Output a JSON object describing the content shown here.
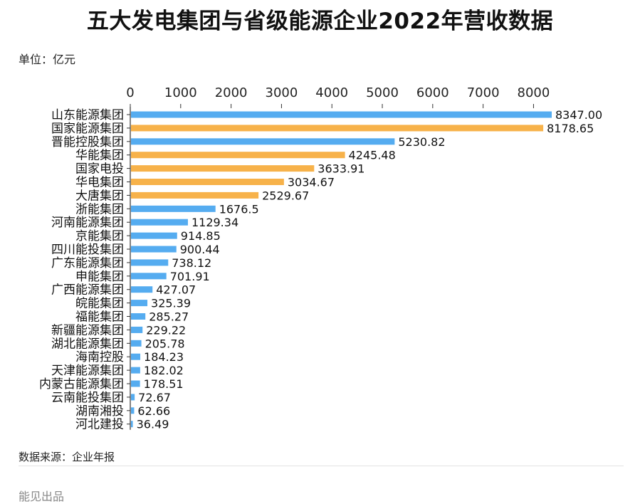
{
  "title": "五大发电集团与省级能源企业2022年营收数据",
  "unit_text": "单位：亿元",
  "source_text": "数据来源：企业年报",
  "brand_text": "能见出品",
  "colors": {
    "blue": "#55acf0",
    "orange": "#f7b24a",
    "axis": "#333333",
    "text": "#111111"
  },
  "chart_data": {
    "type": "bar",
    "orientation": "horizontal",
    "title": "五大发电集团与省级能源企业2022年营收数据",
    "unit": "亿元",
    "xlim": [
      0,
      8347
    ],
    "ticks": [
      0,
      1000,
      2000,
      3000,
      4000,
      5000,
      6000,
      7000,
      8000
    ],
    "grid": false,
    "categories": [
      "山东能源集团",
      "国家能源集团",
      "晋能控股集团",
      "华能集团",
      "国家电投",
      "华电集团",
      "大唐集团",
      "浙能集团",
      "河南能源集团",
      "京能集团",
      "四川能投集团",
      "广东能源集团",
      "申能集团",
      "广西能源集团",
      "皖能集团",
      "福能集团",
      "新疆能源集团",
      "湖北能源集团",
      "海南控股",
      "天津能源集团",
      "内蒙古能源集团",
      "云南能投集团",
      "湖南湘投",
      "河北建投"
    ],
    "values": [
      8347.0,
      8178.65,
      5230.82,
      4245.48,
      3633.91,
      3034.67,
      2529.67,
      1676.5,
      1129.34,
      914.85,
      900.44,
      738.12,
      701.91,
      427.07,
      325.39,
      285.27,
      229.22,
      205.78,
      184.23,
      182.02,
      178.51,
      72.67,
      62.66,
      36.49
    ],
    "labels": [
      "8347.00",
      "8178.65",
      "5230.82",
      "4245.48",
      "3633.91",
      "3034.67",
      "2529.67",
      "1676.5",
      "1129.34",
      "914.85",
      "900.44",
      "738.12",
      "701.91",
      "427.07",
      "325.39",
      "285.27",
      "229.22",
      "205.78",
      "184.23",
      "182.02",
      "178.51",
      "72.67",
      "62.66",
      "36.49"
    ],
    "groups": [
      "blue",
      "orange",
      "blue",
      "orange",
      "orange",
      "orange",
      "orange",
      "blue",
      "blue",
      "blue",
      "blue",
      "blue",
      "blue",
      "blue",
      "blue",
      "blue",
      "blue",
      "blue",
      "blue",
      "blue",
      "blue",
      "blue",
      "blue",
      "blue"
    ]
  }
}
